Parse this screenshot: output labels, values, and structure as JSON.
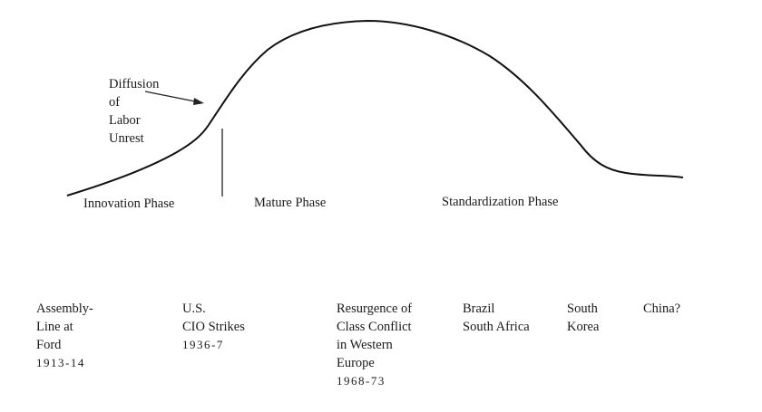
{
  "annotation": {
    "lines": [
      "Diffusion",
      "of",
      "Labor",
      "Unrest"
    ]
  },
  "phases": [
    "Innovation Phase",
    "Mature Phase",
    "Standardization Phase"
  ],
  "examples": [
    {
      "lines": [
        "Assembly-",
        "Line at",
        "Ford"
      ],
      "date": "1913-14"
    },
    {
      "lines": [
        "U.S.",
        "CIO Strikes"
      ],
      "date": "1936-7"
    },
    {
      "lines": [
        "Resurgence of",
        "Class Conflict",
        "in Western",
        "Europe"
      ],
      "date": "1968-73"
    },
    {
      "lines": [
        "Brazil",
        "South Africa"
      ],
      "date": null
    },
    {
      "lines": [
        "South",
        "Korea"
      ],
      "date": null
    },
    {
      "lines": [
        "China?"
      ],
      "date": null
    }
  ]
}
